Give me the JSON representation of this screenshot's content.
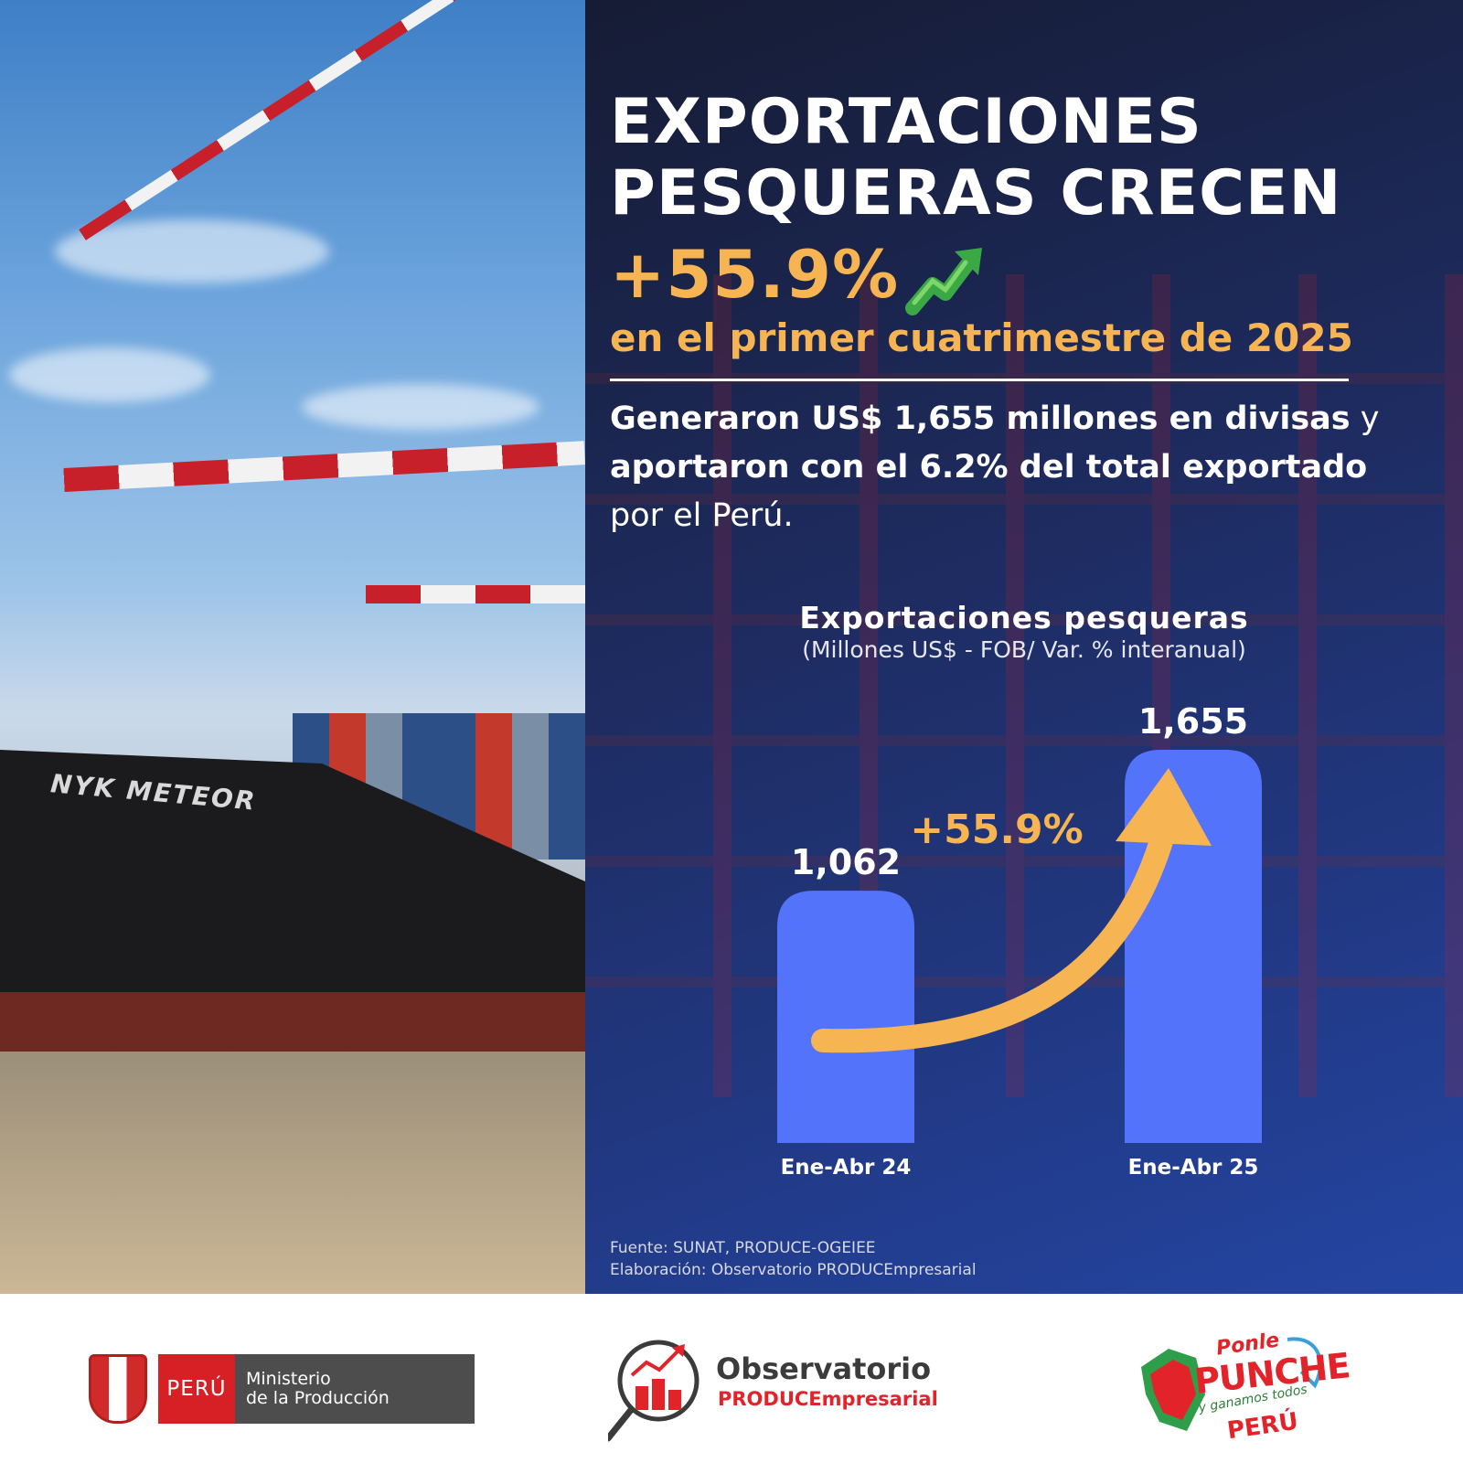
{
  "headline": {
    "line1": "EXPORTACIONES",
    "line2": "PESQUERAS CRECEN",
    "growth": "+55.9%",
    "period": "en el primer cuatrimestre de 2025"
  },
  "photo": {
    "ship_name": "NYK METEOR"
  },
  "summary": {
    "bold": "Generaron US$ 1,655 millones en divisas",
    "part2": " y ",
    "bold2": "aportaron con el 6.2% del total exportado",
    "part3": " por el Perú."
  },
  "chart_data": {
    "type": "bar",
    "title": "Exportaciones pesqueras",
    "subtitle": "(Millones US$ - FOB/ Var. % interanual)",
    "categories": [
      "Ene-Abr 24",
      "Ene-Abr 25"
    ],
    "values": [
      1062,
      1655
    ],
    "value_labels": [
      "1,062",
      "1,655"
    ],
    "annotation": "+55.9%",
    "bar_color": "#5473fb",
    "arrow_color": "#f6b452"
  },
  "source": {
    "line1": "Fuente: SUNAT, PRODUCE-OGEIEE",
    "line2": "Elaboración: Observatorio PRODUCEmpresarial"
  },
  "footer": {
    "peru": "PERÚ",
    "ministry_line1": "Ministerio",
    "ministry_line2": "de la Producción",
    "observatory_title": "Observatorio",
    "observatory_sub": "PRODUCEmpresarial",
    "campaign_line1": "Ponle",
    "campaign_line2": "PUNCHE",
    "campaign_line3": "y ganamos todos",
    "campaign_line4": "PERÚ"
  },
  "colors": {
    "accent": "#f6b452",
    "brand_red": "#d71f26",
    "panel_blue": "#1e2c62"
  }
}
